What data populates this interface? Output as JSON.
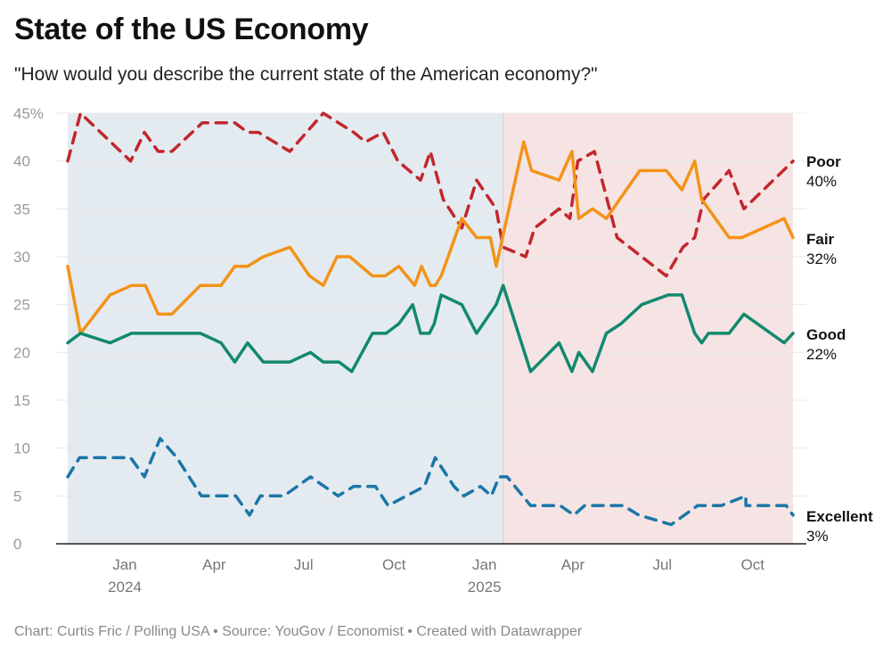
{
  "title": "State of the US Economy",
  "subtitle": "\"How would you describe the current state of the American economy?\"",
  "footer": "Chart: Curtis Fric / Polling USA • Source: YouGov / Economist • Created with Datawrapper",
  "chart_data": {
    "type": "line",
    "ylim": [
      0,
      45
    ],
    "xlim": [
      "2023-11-04",
      "2025-11-11"
    ],
    "grid": true,
    "yticks": [
      "45%",
      "40",
      "35",
      "30",
      "25",
      "20",
      "15",
      "10",
      "5",
      "0"
    ],
    "ytick_values": [
      45,
      40,
      35,
      30,
      25,
      20,
      15,
      10,
      5,
      0
    ],
    "xticks": [
      {
        "date": "2024-01-01",
        "label": "Jan",
        "year": "2024"
      },
      {
        "date": "2024-04-01",
        "label": "Apr",
        "year": ""
      },
      {
        "date": "2024-07-01",
        "label": "Jul",
        "year": ""
      },
      {
        "date": "2024-10-01",
        "label": "Oct",
        "year": ""
      },
      {
        "date": "2025-01-01",
        "label": "Jan",
        "year": "2025"
      },
      {
        "date": "2025-04-01",
        "label": "Apr",
        "year": ""
      },
      {
        "date": "2025-07-01",
        "label": "Jul",
        "year": ""
      },
      {
        "date": "2025-10-01",
        "label": "Oct",
        "year": ""
      }
    ],
    "shaded_regions": [
      {
        "from": "2023-11-04",
        "to": "2025-01-20",
        "color": "#e4ebf0"
      },
      {
        "from": "2025-01-20",
        "to": "2025-11-11",
        "color": "#f6e4e4"
      }
    ],
    "series": [
      {
        "name": "Poor",
        "end_label": "40%",
        "color": "#c1272d",
        "dashed": true,
        "points": [
          [
            "2023-11-04",
            40
          ],
          [
            "2023-11-17",
            45
          ],
          [
            "2024-01-07",
            40
          ],
          [
            "2024-01-21",
            43
          ],
          [
            "2024-02-04",
            41
          ],
          [
            "2024-02-18",
            41
          ],
          [
            "2024-03-20",
            44
          ],
          [
            "2024-04-22",
            44
          ],
          [
            "2024-05-05",
            43
          ],
          [
            "2024-05-16",
            43
          ],
          [
            "2024-06-17",
            41
          ],
          [
            "2024-07-21",
            45
          ],
          [
            "2024-08-21",
            43
          ],
          [
            "2024-09-02",
            42
          ],
          [
            "2024-09-20",
            43
          ],
          [
            "2024-10-05",
            40
          ],
          [
            "2024-10-28",
            38
          ],
          [
            "2024-11-07",
            41
          ],
          [
            "2024-11-20",
            36
          ],
          [
            "2024-12-09",
            33
          ],
          [
            "2024-12-24",
            38
          ],
          [
            "2025-01-13",
            35
          ],
          [
            "2025-01-20",
            31
          ],
          [
            "2025-02-12",
            30
          ],
          [
            "2025-02-21",
            33
          ],
          [
            "2025-03-18",
            35
          ],
          [
            "2025-03-29",
            34
          ],
          [
            "2025-04-06",
            40
          ],
          [
            "2025-04-23",
            41
          ],
          [
            "2025-05-16",
            32
          ],
          [
            "2025-07-05",
            28
          ],
          [
            "2025-07-22",
            31
          ],
          [
            "2025-08-03",
            32
          ],
          [
            "2025-08-12",
            36
          ],
          [
            "2025-09-07",
            39
          ],
          [
            "2025-09-22",
            35
          ],
          [
            "2025-11-11",
            40
          ]
        ]
      },
      {
        "name": "Fair",
        "end_label": "32%",
        "color": "#f39318",
        "dashed": false,
        "points": [
          [
            "2023-11-04",
            29
          ],
          [
            "2023-11-17",
            22
          ],
          [
            "2023-12-17",
            26
          ],
          [
            "2024-01-08",
            27
          ],
          [
            "2024-01-22",
            27
          ],
          [
            "2024-02-04",
            24
          ],
          [
            "2024-02-18",
            24
          ],
          [
            "2024-03-18",
            27
          ],
          [
            "2024-04-08",
            27
          ],
          [
            "2024-04-22",
            29
          ],
          [
            "2024-05-05",
            29
          ],
          [
            "2024-05-21",
            30
          ],
          [
            "2024-06-17",
            31
          ],
          [
            "2024-07-07",
            28
          ],
          [
            "2024-07-21",
            27
          ],
          [
            "2024-08-04",
            30
          ],
          [
            "2024-08-17",
            30
          ],
          [
            "2024-09-09",
            28
          ],
          [
            "2024-09-22",
            28
          ],
          [
            "2024-10-06",
            29
          ],
          [
            "2024-10-22",
            27
          ],
          [
            "2024-10-29",
            29
          ],
          [
            "2024-11-07",
            27
          ],
          [
            "2024-11-12",
            27
          ],
          [
            "2024-11-18",
            28
          ],
          [
            "2024-12-09",
            34
          ],
          [
            "2024-12-24",
            32
          ],
          [
            "2025-01-07",
            32
          ],
          [
            "2025-01-13",
            29
          ],
          [
            "2025-02-10",
            42
          ],
          [
            "2025-02-18",
            39
          ],
          [
            "2025-03-18",
            38
          ],
          [
            "2025-03-31",
            41
          ],
          [
            "2025-04-07",
            34
          ],
          [
            "2025-04-21",
            35
          ],
          [
            "2025-05-05",
            34
          ],
          [
            "2025-06-08",
            39
          ],
          [
            "2025-07-05",
            39
          ],
          [
            "2025-07-21",
            37
          ],
          [
            "2025-08-03",
            40
          ],
          [
            "2025-08-10",
            36
          ],
          [
            "2025-09-07",
            32
          ],
          [
            "2025-09-20",
            32
          ],
          [
            "2025-11-02",
            34
          ],
          [
            "2025-11-11",
            32
          ]
        ]
      },
      {
        "name": "Good",
        "end_label": "22%",
        "color": "#12896e",
        "dashed": false,
        "points": [
          [
            "2023-11-04",
            21
          ],
          [
            "2023-11-17",
            22
          ],
          [
            "2023-12-17",
            21
          ],
          [
            "2024-01-08",
            22
          ],
          [
            "2024-03-18",
            22
          ],
          [
            "2024-04-08",
            21
          ],
          [
            "2024-04-22",
            19
          ],
          [
            "2024-05-05",
            21
          ],
          [
            "2024-05-21",
            19
          ],
          [
            "2024-06-17",
            19
          ],
          [
            "2024-07-08",
            20
          ],
          [
            "2024-07-21",
            19
          ],
          [
            "2024-08-06",
            19
          ],
          [
            "2024-08-19",
            18
          ],
          [
            "2024-09-09",
            22
          ],
          [
            "2024-09-23",
            22
          ],
          [
            "2024-10-06",
            23
          ],
          [
            "2024-10-20",
            25
          ],
          [
            "2024-10-28",
            22
          ],
          [
            "2024-11-06",
            22
          ],
          [
            "2024-11-11",
            23
          ],
          [
            "2024-11-18",
            26
          ],
          [
            "2024-12-09",
            25
          ],
          [
            "2024-12-24",
            22
          ],
          [
            "2025-01-13",
            25
          ],
          [
            "2025-01-20",
            27
          ],
          [
            "2025-02-17",
            18
          ],
          [
            "2025-03-18",
            21
          ],
          [
            "2025-03-31",
            18
          ],
          [
            "2025-04-07",
            20
          ],
          [
            "2025-04-21",
            18
          ],
          [
            "2025-05-05",
            22
          ],
          [
            "2025-05-20",
            23
          ],
          [
            "2025-06-10",
            25
          ],
          [
            "2025-07-07",
            26
          ],
          [
            "2025-07-21",
            26
          ],
          [
            "2025-08-03",
            22
          ],
          [
            "2025-08-10",
            21
          ],
          [
            "2025-08-17",
            22
          ],
          [
            "2025-09-07",
            22
          ],
          [
            "2025-09-22",
            24
          ],
          [
            "2025-11-02",
            21
          ],
          [
            "2025-11-11",
            22
          ]
        ]
      },
      {
        "name": "Excellent",
        "end_label": "3%",
        "color": "#1b76a8",
        "dashed": true,
        "points": [
          [
            "2023-11-04",
            7
          ],
          [
            "2023-11-16",
            9
          ],
          [
            "2024-01-07",
            9
          ],
          [
            "2024-01-21",
            7
          ],
          [
            "2024-02-06",
            11
          ],
          [
            "2024-02-23",
            9
          ],
          [
            "2024-03-19",
            5
          ],
          [
            "2024-04-23",
            5
          ],
          [
            "2024-05-07",
            3
          ],
          [
            "2024-05-18",
            5
          ],
          [
            "2024-06-11",
            5
          ],
          [
            "2024-07-08",
            7
          ],
          [
            "2024-08-05",
            5
          ],
          [
            "2024-08-21",
            6
          ],
          [
            "2024-09-12",
            6
          ],
          [
            "2024-09-25",
            4
          ],
          [
            "2024-11-01",
            6
          ],
          [
            "2024-11-12",
            9
          ],
          [
            "2024-12-01",
            6
          ],
          [
            "2024-12-11",
            5
          ],
          [
            "2024-12-28",
            6
          ],
          [
            "2025-01-08",
            5
          ],
          [
            "2025-01-16",
            7
          ],
          [
            "2025-01-24",
            7
          ],
          [
            "2025-02-17",
            4
          ],
          [
            "2025-03-19",
            4
          ],
          [
            "2025-04-02",
            3
          ],
          [
            "2025-04-13",
            4
          ],
          [
            "2025-05-22",
            4
          ],
          [
            "2025-06-07",
            3
          ],
          [
            "2025-07-10",
            2
          ],
          [
            "2025-08-06",
            4
          ],
          [
            "2025-08-30",
            4
          ],
          [
            "2025-09-24",
            5
          ],
          [
            "2025-09-24",
            4
          ],
          [
            "2025-11-04",
            4
          ],
          [
            "2025-11-11",
            3
          ]
        ]
      }
    ]
  }
}
